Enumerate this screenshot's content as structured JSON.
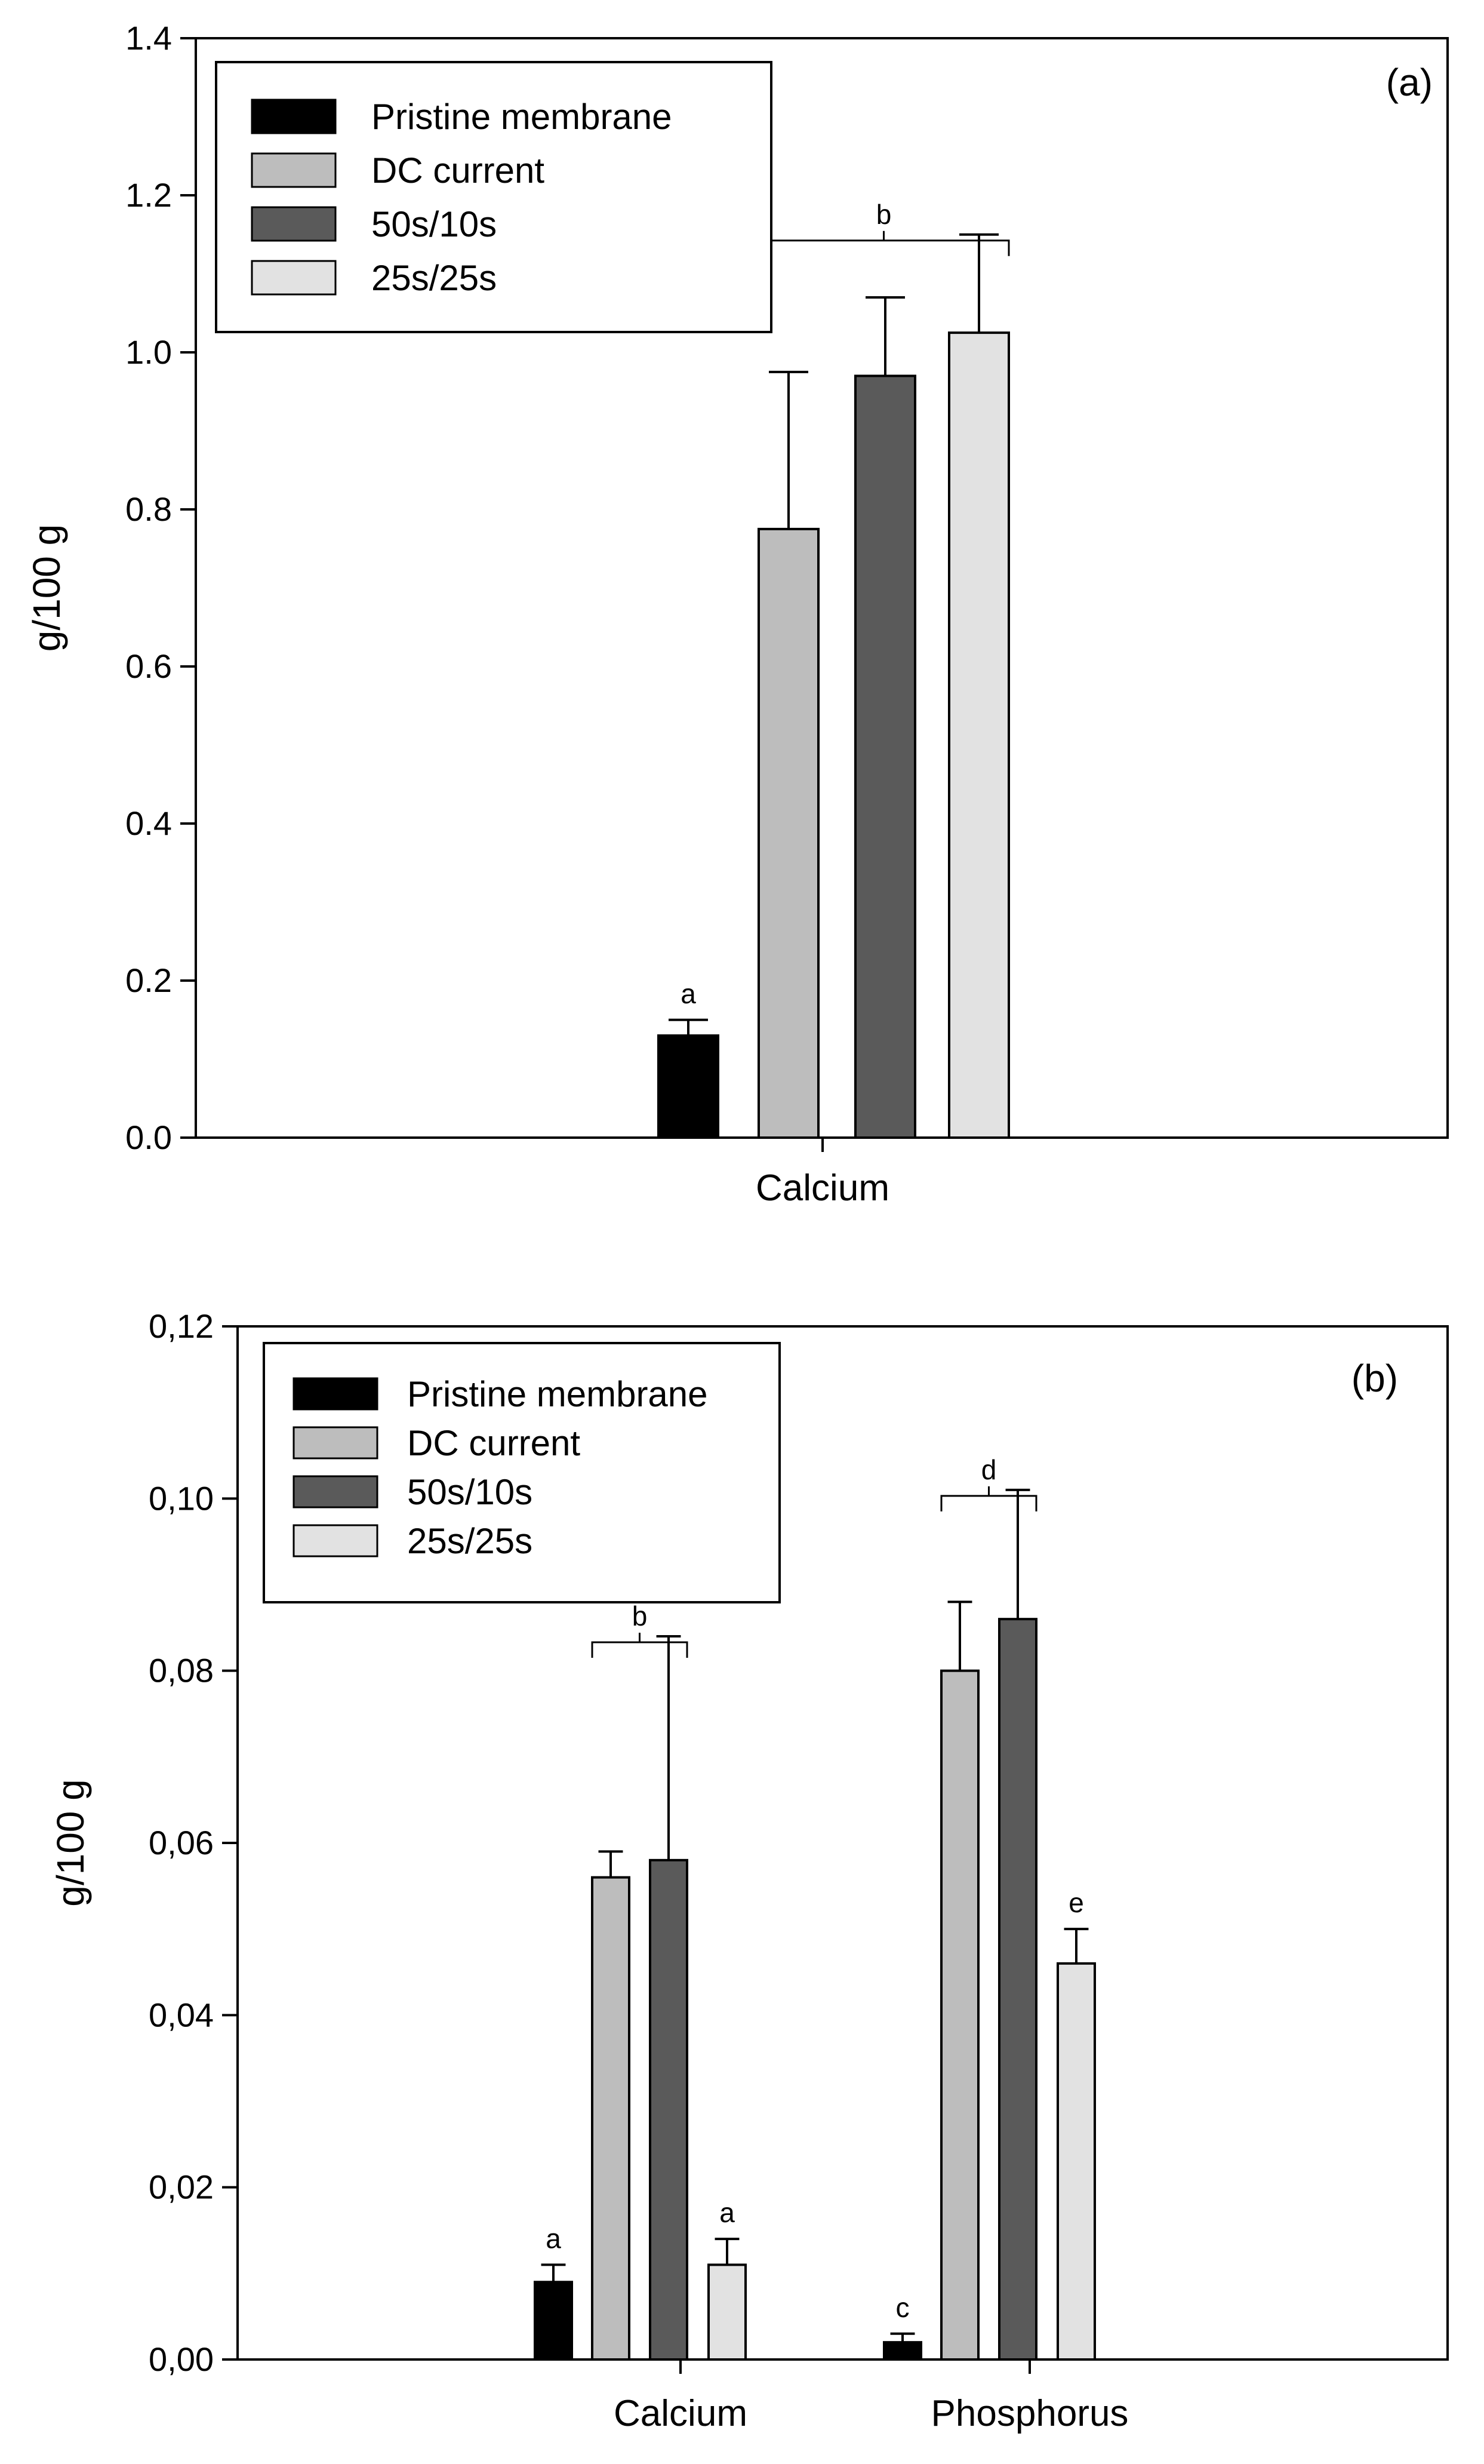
{
  "chart_data": [
    {
      "type": "bar",
      "panel_label": "(a)",
      "ylabel": "g/100 g",
      "xlabel": "",
      "ylim": [
        0,
        1.4
      ],
      "yticks": [
        0.0,
        0.2,
        0.4,
        0.6,
        0.8,
        1.0,
        1.2,
        1.4
      ],
      "ytick_labels": [
        "0.0",
        "0.2",
        "0.4",
        "0.6",
        "0.8",
        "1.0",
        "1.2",
        "1.4"
      ],
      "categories": [
        "Calcium"
      ],
      "series": [
        {
          "name": "Pristine membrane",
          "color": "#000000",
          "values": [
            0.13
          ],
          "errors": [
            0.02
          ]
        },
        {
          "name": "DC current",
          "color": "#bdbdbd",
          "values": [
            0.775
          ],
          "errors": [
            0.2
          ]
        },
        {
          "name": "50s/10s",
          "color": "#5a5a5a",
          "values": [
            0.97
          ],
          "errors": [
            0.1
          ]
        },
        {
          "name": "25s/25s",
          "color": "#e2e2e2",
          "values": [
            1.025
          ],
          "errors": [
            0.125
          ]
        }
      ],
      "letters": [
        {
          "text": "a",
          "category": 0,
          "series": [
            0
          ]
        },
        {
          "text": "b",
          "category": 0,
          "series": [
            1,
            2,
            3
          ],
          "bracket": true
        }
      ],
      "legend_position": "top-left"
    },
    {
      "type": "bar",
      "panel_label": "(b)",
      "ylabel": "g/100 g",
      "xlabel": "",
      "ylim": [
        0,
        0.12
      ],
      "yticks": [
        0.0,
        0.02,
        0.04,
        0.06,
        0.08,
        0.1,
        0.12
      ],
      "ytick_labels": [
        "0,00",
        "0,02",
        "0,04",
        "0,06",
        "0,08",
        "0,10",
        "0,12"
      ],
      "categories": [
        "Calcium",
        "Phosphorus"
      ],
      "series": [
        {
          "name": "Pristine membrane",
          "color": "#000000",
          "values": [
            0.009,
            0.002
          ],
          "errors": [
            0.002,
            0.001
          ]
        },
        {
          "name": "DC current",
          "color": "#bdbdbd",
          "values": [
            0.056,
            0.08
          ],
          "errors": [
            0.003,
            0.008
          ]
        },
        {
          "name": "50s/10s",
          "color": "#5a5a5a",
          "values": [
            0.058,
            0.086
          ],
          "errors": [
            0.026,
            0.015
          ]
        },
        {
          "name": "25s/25s",
          "color": "#e2e2e2",
          "values": [
            0.011,
            0.046
          ],
          "errors": [
            0.003,
            0.004
          ]
        }
      ],
      "letters": [
        {
          "text": "a",
          "category": 0,
          "series": [
            0
          ]
        },
        {
          "text": "b",
          "category": 0,
          "series": [
            1,
            2
          ],
          "bracket": true
        },
        {
          "text": "a",
          "category": 0,
          "series": [
            3
          ]
        },
        {
          "text": "c",
          "category": 1,
          "series": [
            0
          ]
        },
        {
          "text": "d",
          "category": 1,
          "series": [
            1,
            2
          ],
          "bracket": true
        },
        {
          "text": "e",
          "category": 1,
          "series": [
            3
          ]
        }
      ],
      "legend_position": "top-left"
    }
  ]
}
